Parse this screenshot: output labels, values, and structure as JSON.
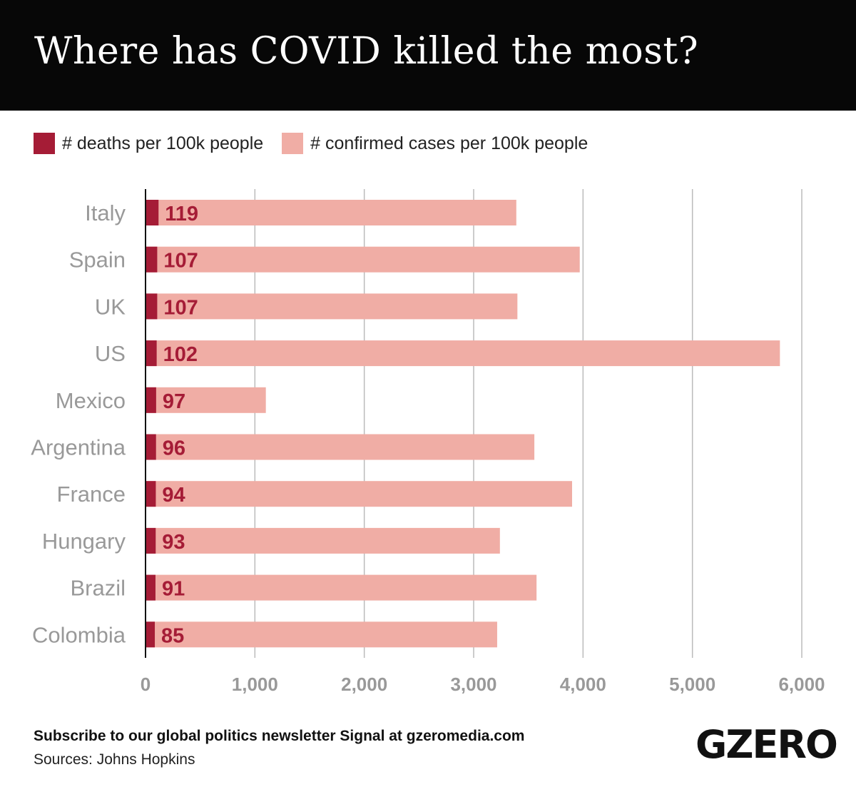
{
  "title": "Where has COVID killed the most?",
  "colors": {
    "deaths": "#a51c36",
    "cases": "#f0ada5",
    "label": "#999999",
    "grid": "#bbbbbb"
  },
  "chart_data": {
    "type": "bar",
    "orientation": "horizontal",
    "categories": [
      "Italy",
      "Spain",
      "UK",
      "US",
      "Mexico",
      "Argentina",
      "France",
      "Hungary",
      "Brazil",
      "Colombia"
    ],
    "series": [
      {
        "name": "# deaths per 100k people",
        "values": [
          119,
          107,
          107,
          102,
          97,
          96,
          94,
          93,
          91,
          85
        ]
      },
      {
        "name": "# confirmed cases per 100k people",
        "values": [
          3390,
          3970,
          3400,
          5800,
          1100,
          3555,
          3900,
          3240,
          3575,
          3215
        ]
      }
    ],
    "xlim": [
      0,
      6000
    ],
    "xticks": [
      "0",
      "1,000",
      "2,000",
      "3,000",
      "4,000",
      "5,000",
      "6,000"
    ],
    "grid": true,
    "legend": "top-left"
  },
  "footer": {
    "subscribe": "Subscribe to our global politics newsletter Signal at gzeromedia.com",
    "sources": "Sources: Johns Hopkins"
  },
  "logo": "GZERO"
}
